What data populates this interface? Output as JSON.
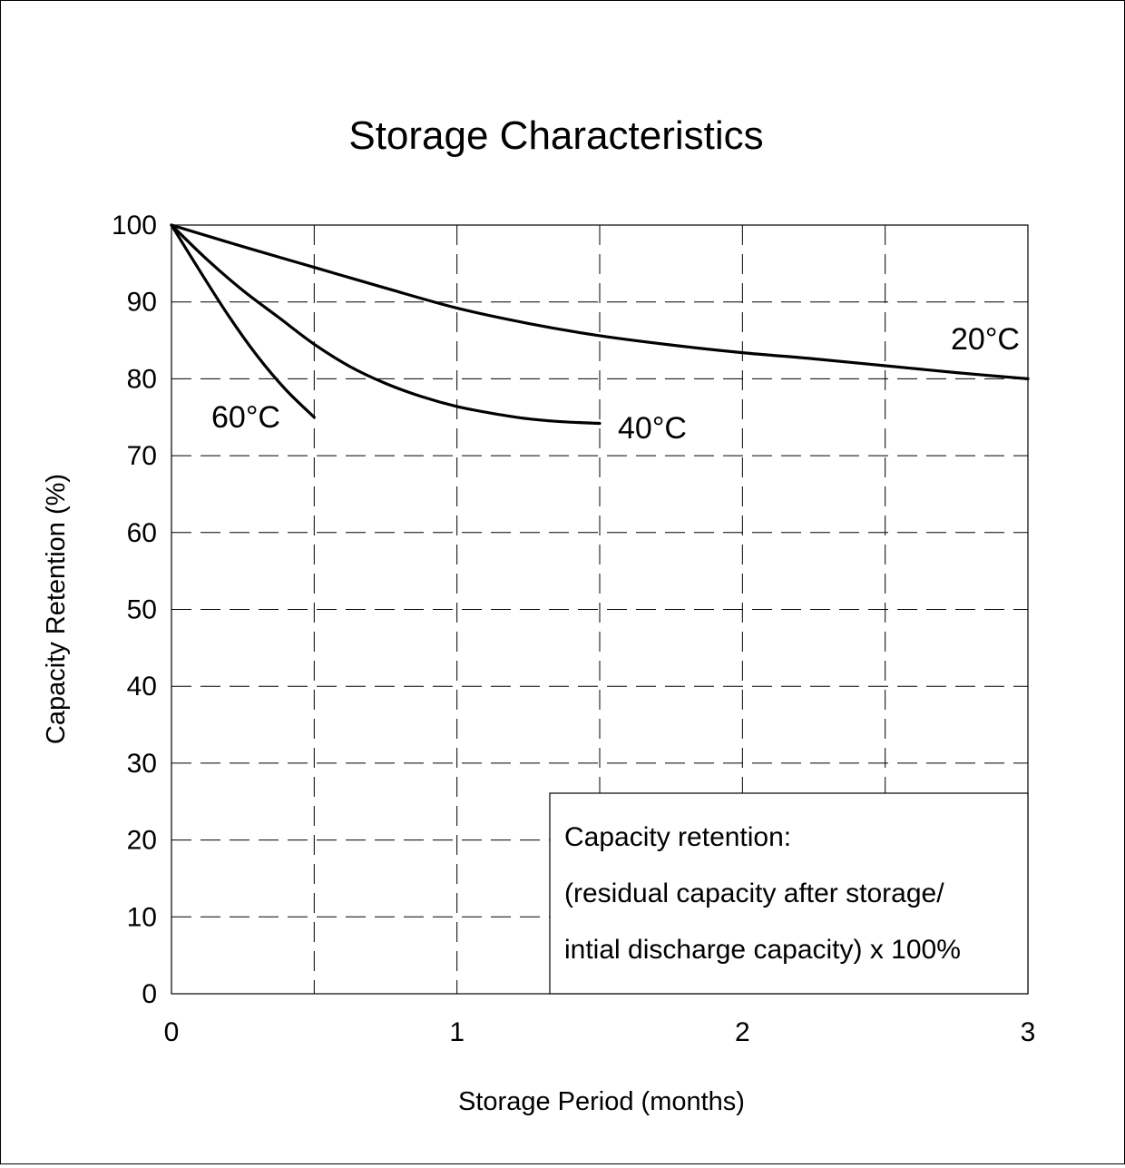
{
  "chart_data": {
    "type": "line",
    "title": "Storage Characteristics",
    "xlabel": "Storage Period (months)",
    "ylabel": "Capacity Retention (%)",
    "xlim": [
      0,
      3
    ],
    "ylim": [
      0,
      100
    ],
    "x_ticks": [
      "0",
      "1",
      "2",
      "3"
    ],
    "x_tick_values": [
      0,
      1,
      2,
      3
    ],
    "y_ticks": [
      "0",
      "10",
      "20",
      "30",
      "40",
      "50",
      "60",
      "70",
      "80",
      "90",
      "100"
    ],
    "y_tick_values": [
      0,
      10,
      20,
      30,
      40,
      50,
      60,
      70,
      80,
      90,
      100
    ],
    "x_gridlines": [
      0.5,
      1,
      1.5,
      2,
      2.5
    ],
    "y_gridlines": [
      10,
      20,
      30,
      40,
      50,
      60,
      70,
      80,
      90
    ],
    "grid": "dashed",
    "series": [
      {
        "name": "20°C",
        "points": [
          [
            0,
            100
          ],
          [
            0.25,
            97.2
          ],
          [
            0.5,
            94.5
          ],
          [
            0.75,
            91.8
          ],
          [
            1,
            89.2
          ],
          [
            1.25,
            87.2
          ],
          [
            1.5,
            85.6
          ],
          [
            1.75,
            84.4
          ],
          [
            2,
            83.4
          ],
          [
            2.25,
            82.6
          ],
          [
            2.5,
            81.7
          ],
          [
            2.75,
            80.8
          ],
          [
            3,
            80
          ]
        ]
      },
      {
        "name": "40°C",
        "points": [
          [
            0,
            100
          ],
          [
            0.125,
            95.5
          ],
          [
            0.25,
            91.5
          ],
          [
            0.375,
            88
          ],
          [
            0.5,
            84.5
          ],
          [
            0.625,
            81.6
          ],
          [
            0.75,
            79.4
          ],
          [
            0.875,
            77.7
          ],
          [
            1,
            76.4
          ],
          [
            1.125,
            75.5
          ],
          [
            1.25,
            74.8
          ],
          [
            1.375,
            74.4
          ],
          [
            1.5,
            74.2
          ]
        ]
      },
      {
        "name": "60°C",
        "points": [
          [
            0,
            100
          ],
          [
            0.1,
            94
          ],
          [
            0.2,
            88.2
          ],
          [
            0.3,
            83
          ],
          [
            0.4,
            78.6
          ],
          [
            0.5,
            75
          ]
        ]
      }
    ],
    "annotation": {
      "lines": [
        "Capacity retention:",
        "(residual capacity after storage/",
        "intial discharge capacity) x 100%"
      ]
    }
  }
}
